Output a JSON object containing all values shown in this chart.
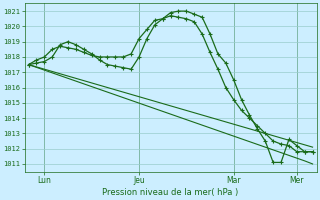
{
  "bg_color": "#cceeff",
  "grid_color": "#99cccc",
  "line_color": "#1a6b1a",
  "ylabel": "Pression niveau de la mer( hPa )",
  "ylim": [
    1010.5,
    1021.5
  ],
  "yticks": [
    1011,
    1012,
    1013,
    1014,
    1015,
    1016,
    1017,
    1018,
    1019,
    1020,
    1021
  ],
  "xtick_labels": [
    "Lun",
    "Jeu",
    "Mar",
    "Mer"
  ],
  "xtick_positions": [
    2,
    14,
    26,
    34
  ],
  "total_points": 37,
  "line1": [
    1017.5,
    1017.8,
    1018.0,
    1018.5,
    1018.7,
    1018.6,
    1018.5,
    1018.3,
    1018.1,
    1018.0,
    1018.0,
    1018.0,
    1018.0,
    1018.2,
    1019.2,
    1019.8,
    1020.4,
    1020.5,
    1020.9,
    1021.0,
    1021.0,
    1020.8,
    1020.6,
    1019.5,
    1018.2,
    1017.6,
    1016.5,
    1015.2,
    1014.2,
    1013.3,
    1012.5,
    1011.1,
    1011.1,
    1012.6,
    1012.2,
    1011.8,
    1011.8
  ],
  "line2": [
    1017.5,
    1017.6,
    1017.7,
    1018.0,
    1018.8,
    1019.0,
    1018.8,
    1018.5,
    1018.2,
    1017.8,
    1017.5,
    1017.4,
    1017.3,
    1017.2,
    1018.0,
    1019.2,
    1020.1,
    1020.5,
    1020.7,
    1020.6,
    1020.5,
    1020.3,
    1019.5,
    1018.3,
    1017.2,
    1016.0,
    1015.2,
    1014.5,
    1014.0,
    1013.5,
    1013.0,
    1012.5,
    1012.3,
    1012.2,
    1011.8,
    1011.8,
    1011.8
  ],
  "trend1": [
    1017.5,
    1017.35,
    1017.2,
    1017.05,
    1016.9,
    1016.75,
    1016.6,
    1016.45,
    1016.3,
    1016.15,
    1016.0,
    1015.85,
    1015.7,
    1015.55,
    1015.4,
    1015.25,
    1015.1,
    1014.95,
    1014.8,
    1014.65,
    1014.5,
    1014.35,
    1014.2,
    1014.05,
    1013.9,
    1013.75,
    1013.6,
    1013.45,
    1013.3,
    1013.15,
    1013.0,
    1012.85,
    1012.7,
    1012.55,
    1012.4,
    1012.25,
    1012.1
  ],
  "trend2": [
    1017.5,
    1017.32,
    1017.14,
    1016.96,
    1016.78,
    1016.6,
    1016.42,
    1016.24,
    1016.06,
    1015.88,
    1015.7,
    1015.52,
    1015.34,
    1015.16,
    1014.98,
    1014.8,
    1014.62,
    1014.44,
    1014.26,
    1014.08,
    1013.9,
    1013.72,
    1013.54,
    1013.36,
    1013.18,
    1013.0,
    1012.82,
    1012.64,
    1012.46,
    1012.28,
    1012.1,
    1011.92,
    1011.74,
    1011.56,
    1011.38,
    1011.2,
    1011.0
  ]
}
